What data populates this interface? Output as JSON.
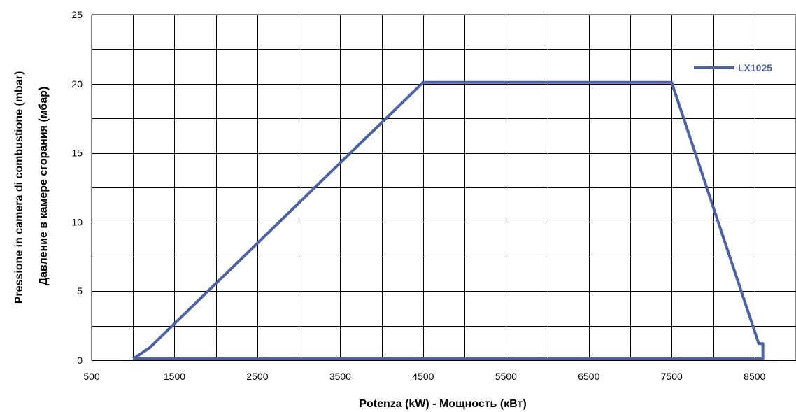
{
  "chart_data": {
    "type": "line",
    "xlabel": "Potenza (kW) - Мощность  (кВт)",
    "ylabel_line1": "Pressione in camera di combustione (mbar)",
    "ylabel_line2": "Давление в камере сгорания (мбар)",
    "xlim": [
      500,
      9000
    ],
    "ylim": [
      0,
      25
    ],
    "x_tick_labels": [
      "500",
      "1500",
      "2500",
      "3500",
      "4500",
      "5500",
      "6500",
      "7500",
      "8500"
    ],
    "y_tick_labels": [
      "0",
      "5",
      "10",
      "15",
      "20",
      "25"
    ],
    "grid": true,
    "legend_position": "top-right",
    "colors": {
      "series": "#4a63a8",
      "legend_text": "#4a63a8",
      "grid": "#000000"
    },
    "series": [
      {
        "name": "LX1025",
        "points": [
          [
            1000,
            0.1
          ],
          [
            1050,
            0.3
          ],
          [
            1200,
            0.9
          ],
          [
            4500,
            20.1
          ],
          [
            7500,
            20.1
          ],
          [
            8550,
            1.2
          ],
          [
            8600,
            1.2
          ],
          [
            8600,
            0.1
          ],
          [
            1000,
            0.1
          ]
        ]
      }
    ]
  }
}
